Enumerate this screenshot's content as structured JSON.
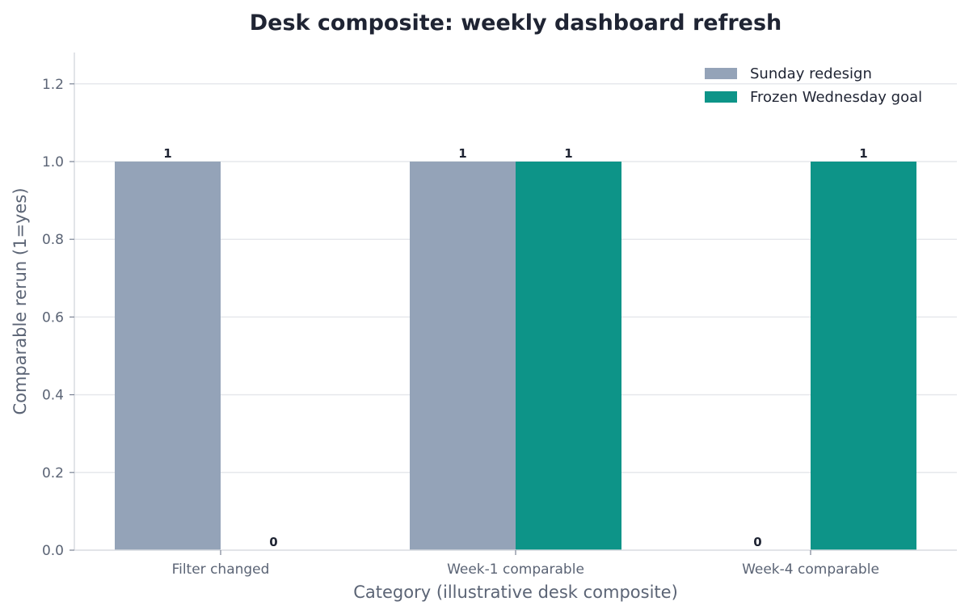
{
  "chart_data": {
    "type": "bar",
    "title": "Desk composite: weekly dashboard refresh",
    "xlabel": "Category (illustrative desk composite)",
    "ylabel": "Comparable rerun (1=yes)",
    "categories": [
      "Filter changed",
      "Week-1 comparable",
      "Week-4 comparable"
    ],
    "series": [
      {
        "name": "Sunday redesign",
        "values": [
          1,
          1,
          0
        ],
        "color": "#94a3b8"
      },
      {
        "name": "Frozen Wednesday goal",
        "values": [
          0,
          1,
          1
        ],
        "color": "#0d9488"
      }
    ],
    "ylim": [
      0,
      1.28
    ],
    "yticks": [
      "0.0",
      "0.2",
      "0.4",
      "0.6",
      "0.8",
      "1.0",
      "1.2"
    ],
    "grid": "horizontal",
    "legend_position": "top-right",
    "data_labels": true
  }
}
